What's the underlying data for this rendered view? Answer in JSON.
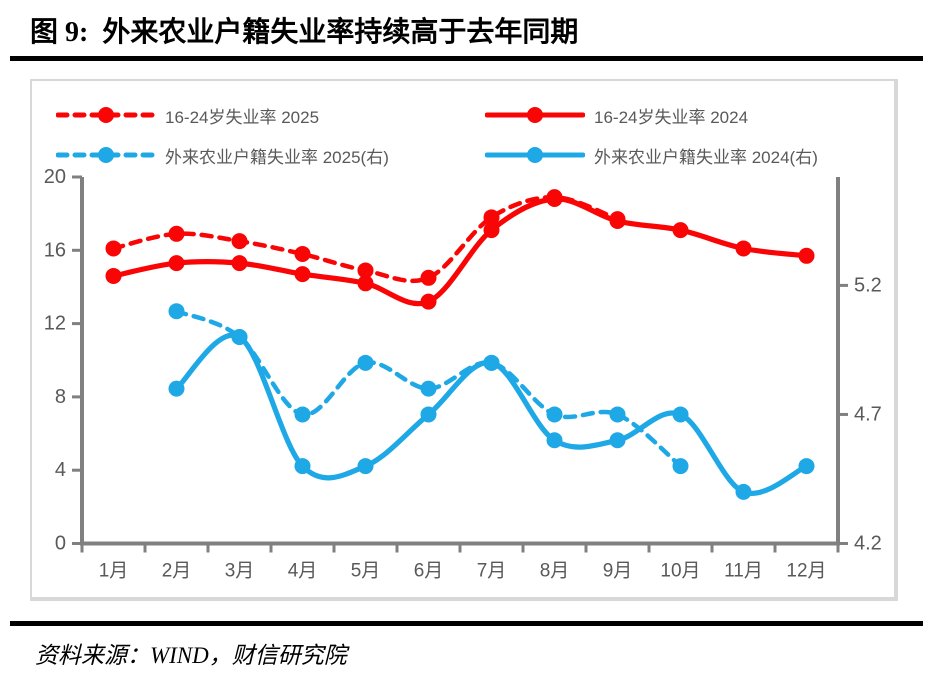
{
  "header": {
    "title": "图 9:  外来农业户籍失业率持续高于去年同期"
  },
  "footer": {
    "source": "资料来源：WIND，财信研究院"
  },
  "colors": {
    "red": "#FA0505",
    "blue": "#1FA8E6",
    "axis": "#808080",
    "tick_label": "#595959",
    "chart_border": "#D8D8D8",
    "rule": "#000000"
  },
  "chart_data": {
    "type": "line",
    "title": "",
    "xlabel": "",
    "ylabel": "",
    "grid": false,
    "legend_position": "top",
    "categories": [
      "1月",
      "2月",
      "3月",
      "4月",
      "5月",
      "6月",
      "7月",
      "8月",
      "9月",
      "10月",
      "11月",
      "12月"
    ],
    "left_axis": {
      "min": 0,
      "max": 20,
      "ticks": [
        0,
        4,
        8,
        12,
        16,
        20
      ]
    },
    "right_axis": {
      "min": 4.2,
      "max": 5.62,
      "ticks": [
        4.2,
        4.7,
        5.2
      ]
    },
    "series": [
      {
        "name": "16-24岁失业率 2025",
        "axis": "left",
        "color": "red",
        "style": "dashed",
        "values": [
          16.1,
          16.9,
          16.5,
          15.8,
          14.9,
          14.5,
          17.8,
          18.9,
          17.7,
          null,
          null,
          null
        ]
      },
      {
        "name": "16-24岁失业率 2024",
        "axis": "left",
        "color": "red",
        "style": "solid",
        "values": [
          14.6,
          15.3,
          15.3,
          14.7,
          14.2,
          13.2,
          17.1,
          18.8,
          17.6,
          17.1,
          16.1,
          15.7
        ]
      },
      {
        "name": "外来农业户籍失业率 2025(右)",
        "axis": "right",
        "color": "blue",
        "style": "dashed",
        "values": [
          null,
          5.1,
          5.0,
          4.7,
          4.9,
          4.8,
          4.9,
          4.7,
          4.7,
          4.5,
          null,
          null
        ]
      },
      {
        "name": "外来农业户籍失业率 2024(右)",
        "axis": "right",
        "color": "blue",
        "style": "solid",
        "values": [
          null,
          4.8,
          5.0,
          4.5,
          4.5,
          4.7,
          4.9,
          4.6,
          4.6,
          4.7,
          4.4,
          4.5
        ]
      }
    ]
  }
}
